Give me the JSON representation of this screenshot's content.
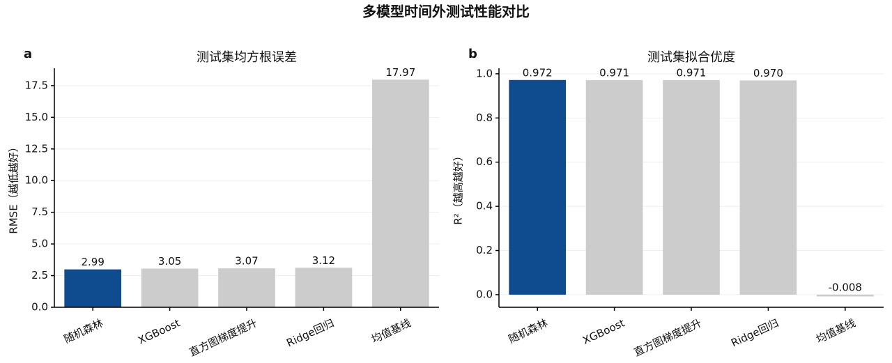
{
  "title": "多模型时间外测试性能对比",
  "chart_data": [
    {
      "type": "bar",
      "panel_label": "a",
      "title": "测试集均方根误差",
      "ylabel": "RMSE（越低越好）",
      "categories": [
        "随机森林",
        "XGBoost",
        "直方图梯度提升",
        "Ridge回归",
        "均值基线"
      ],
      "values": [
        2.99,
        3.05,
        3.07,
        3.12,
        17.97
      ],
      "colors": [
        "#0f4c8f",
        "#cccccc",
        "#cccccc",
        "#cccccc",
        "#cccccc"
      ],
      "ylim": [
        0,
        18.87
      ],
      "yticks": [
        {
          "value": 0,
          "label": "0.0"
        },
        2.5,
        {
          "value": 5,
          "label": "5.0"
        },
        7.5,
        {
          "value": 10,
          "label": "10.0"
        },
        12.5,
        {
          "value": 15,
          "label": "15.0"
        },
        17.5
      ],
      "grid": true
    },
    {
      "type": "bar",
      "panel_label": "b",
      "title": "测试集拟合优度",
      "ylabel": "R²（越高越好）",
      "categories": [
        "随机森林",
        "XGBoost",
        "直方图梯度提升",
        "Ridge回归",
        "均值基线"
      ],
      "values": [
        0.972,
        0.971,
        0.971,
        0.97,
        -0.008
      ],
      "value_labels": [
        "0.972",
        "0.971",
        "0.971",
        "0.970",
        "-0.008"
      ],
      "colors": [
        "#0f4c8f",
        "#cccccc",
        "#cccccc",
        "#cccccc",
        "#cccccc"
      ],
      "ylim": [
        -0.057,
        1.025
      ],
      "yticks": [
        {
          "value": 0,
          "label": "0.0"
        },
        0.2,
        0.4,
        0.6,
        0.8,
        {
          "value": 1,
          "label": "1.0"
        }
      ],
      "grid": true
    }
  ]
}
